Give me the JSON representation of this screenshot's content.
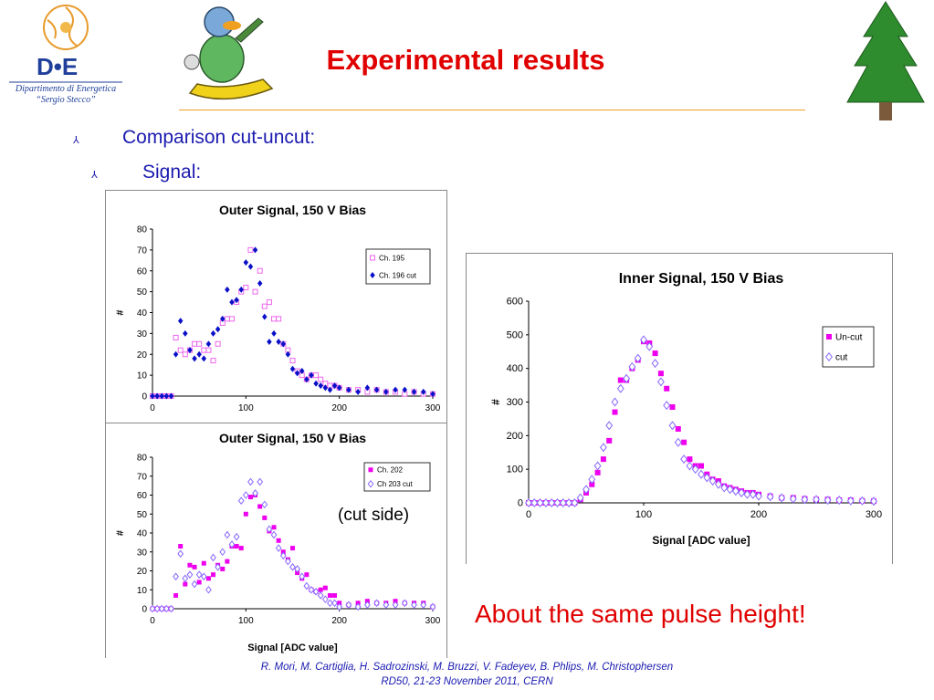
{
  "header": {
    "title": "Experimental results",
    "logo": {
      "lettering": "D•E",
      "caption_line1": "Dipartimento di Energetica",
      "caption_line2": "“Sergio Stecco”"
    }
  },
  "bullets": [
    {
      "text": "Comparison cut-uncut:",
      "icon": "arrowhead-bullet"
    },
    {
      "text": "Signal:",
      "icon": "arrowhead-bullet"
    }
  ],
  "colors": {
    "accent_red": "#e00000",
    "bullet_blue": "#1a1ab0",
    "open_series": "#ee66ee",
    "filled_blue": "#0a10c8",
    "filled_magenta": "#ee00ee",
    "open_diamond": "#8866ff"
  },
  "annotations": {
    "cut_side": "(cut side)",
    "conclusion": "About the same pulse height!"
  },
  "footer": {
    "line1": "R. Mori, M. Cartiglia, H. Sadrozinski, M. Bruzzi, V. Fadeyev, B. Phlips, M. Christophersen",
    "line2": "RD50, 21-23 November 2011, CERN"
  },
  "chart_data": [
    {
      "type": "scatter",
      "title": "Outer Signal, 150 V Bias",
      "xlabel": "",
      "ylabel": "#",
      "xlim": [
        0,
        300
      ],
      "ylim": [
        0,
        80
      ],
      "xticks": [
        0,
        100,
        200,
        300
      ],
      "yticks": [
        0,
        10,
        20,
        30,
        40,
        50,
        60,
        70,
        80
      ],
      "legend": "top-right",
      "series": [
        {
          "name": "Ch. 195",
          "marker": "open-square",
          "color": "#ee66ee",
          "x": [
            0,
            5,
            10,
            15,
            20,
            25,
            30,
            35,
            40,
            45,
            50,
            55,
            60,
            65,
            70,
            75,
            80,
            85,
            90,
            95,
            100,
            105,
            110,
            115,
            120,
            125,
            130,
            135,
            140,
            145,
            150,
            155,
            160,
            165,
            170,
            175,
            180,
            185,
            190,
            195,
            200,
            210,
            220,
            230,
            240,
            250,
            260,
            270,
            280,
            290,
            300
          ],
          "y": [
            0,
            0,
            0,
            0,
            0,
            28,
            22,
            20,
            22,
            25,
            25,
            22,
            22,
            17,
            25,
            35,
            37,
            37,
            45,
            50,
            52,
            70,
            50,
            60,
            43,
            45,
            37,
            37,
            25,
            22,
            17,
            12,
            10,
            8,
            10,
            10,
            8,
            6,
            5,
            5,
            4,
            3,
            3,
            2,
            3,
            2,
            2,
            1,
            2,
            1,
            1
          ]
        },
        {
          "name": "Ch. 196 cut",
          "marker": "filled-diamond",
          "color": "#0a10c8",
          "x": [
            0,
            5,
            10,
            15,
            20,
            25,
            30,
            35,
            40,
            45,
            50,
            55,
            60,
            65,
            70,
            75,
            80,
            85,
            90,
            95,
            100,
            105,
            110,
            115,
            120,
            125,
            130,
            135,
            140,
            145,
            150,
            155,
            160,
            165,
            170,
            175,
            180,
            185,
            190,
            195,
            200,
            210,
            220,
            230,
            240,
            250,
            260,
            270,
            280,
            290,
            300
          ],
          "y": [
            0,
            0,
            0,
            0,
            0,
            20,
            36,
            30,
            22,
            18,
            20,
            18,
            25,
            30,
            32,
            37,
            51,
            45,
            46,
            51,
            64,
            62,
            70,
            54,
            38,
            26,
            30,
            26,
            25,
            20,
            13,
            11,
            12,
            8,
            10,
            6,
            5,
            4,
            3,
            5,
            4,
            3,
            2,
            4,
            3,
            2,
            3,
            3,
            2,
            2,
            1
          ]
        }
      ]
    },
    {
      "type": "scatter",
      "title": "Outer Signal, 150 V Bias",
      "xlabel": "Signal [ADC value]",
      "ylabel": "#",
      "xlim": [
        0,
        300
      ],
      "ylim": [
        0,
        80
      ],
      "xticks": [
        0,
        100,
        200,
        300
      ],
      "yticks": [
        0,
        10,
        20,
        30,
        40,
        50,
        60,
        70,
        80
      ],
      "legend": "top-right",
      "series": [
        {
          "name": "Ch. 202",
          "marker": "filled-square",
          "color": "#ee00ee",
          "x": [
            0,
            5,
            10,
            15,
            20,
            25,
            30,
            35,
            40,
            45,
            50,
            55,
            60,
            65,
            70,
            75,
            80,
            85,
            90,
            95,
            100,
            105,
            110,
            115,
            120,
            125,
            130,
            135,
            140,
            145,
            150,
            155,
            160,
            165,
            170,
            175,
            180,
            185,
            190,
            195,
            200,
            210,
            220,
            230,
            240,
            250,
            260,
            270,
            280,
            290,
            300
          ],
          "y": [
            0,
            0,
            0,
            0,
            0,
            7,
            33,
            13,
            23,
            22,
            14,
            24,
            16,
            18,
            23,
            21,
            25,
            33,
            33,
            32,
            50,
            59,
            60,
            54,
            48,
            41,
            43,
            36,
            30,
            26,
            32,
            19,
            16,
            18,
            10,
            9,
            10,
            11,
            7,
            7,
            3,
            2,
            3,
            4,
            3,
            3,
            4,
            3,
            3,
            3,
            1
          ]
        },
        {
          "name": "Ch 203 cut",
          "marker": "open-diamond",
          "color": "#8866ff",
          "x": [
            0,
            5,
            10,
            15,
            20,
            25,
            30,
            35,
            40,
            45,
            50,
            55,
            60,
            65,
            70,
            75,
            80,
            85,
            90,
            95,
            100,
            105,
            110,
            115,
            120,
            125,
            130,
            135,
            140,
            145,
            150,
            155,
            160,
            165,
            170,
            175,
            180,
            185,
            190,
            195,
            200,
            210,
            220,
            230,
            240,
            250,
            260,
            270,
            280,
            290,
            300
          ],
          "y": [
            0,
            0,
            0,
            0,
            0,
            17,
            29,
            16,
            18,
            13,
            18,
            17,
            10,
            27,
            22,
            30,
            39,
            34,
            38,
            57,
            60,
            67,
            61,
            67,
            55,
            42,
            39,
            32,
            28,
            25,
            22,
            21,
            17,
            12,
            10,
            9,
            7,
            5,
            3,
            3,
            1,
            2,
            1,
            2,
            3,
            2,
            2,
            3,
            2,
            2,
            1
          ]
        }
      ]
    },
    {
      "type": "scatter",
      "title": "Inner Signal, 150 V Bias",
      "xlabel": "Signal [ADC value]",
      "ylabel": "#",
      "xlim": [
        0,
        300
      ],
      "ylim": [
        0,
        600
      ],
      "xticks": [
        0,
        100,
        200,
        300
      ],
      "yticks": [
        0,
        100,
        200,
        300,
        400,
        500,
        600
      ],
      "legend": "right",
      "series": [
        {
          "name": "Un-cut",
          "marker": "filled-square",
          "color": "#ee00ee",
          "x": [
            0,
            5,
            10,
            15,
            20,
            25,
            30,
            35,
            40,
            45,
            50,
            55,
            60,
            65,
            70,
            75,
            80,
            85,
            90,
            95,
            100,
            105,
            110,
            115,
            120,
            125,
            130,
            135,
            140,
            145,
            150,
            155,
            160,
            165,
            170,
            175,
            180,
            185,
            190,
            195,
            200,
            210,
            220,
            230,
            240,
            250,
            260,
            270,
            280,
            290,
            300
          ],
          "y": [
            0,
            0,
            0,
            0,
            0,
            0,
            0,
            0,
            0,
            10,
            30,
            55,
            90,
            130,
            185,
            270,
            365,
            365,
            400,
            425,
            480,
            475,
            445,
            385,
            340,
            285,
            220,
            180,
            130,
            110,
            110,
            85,
            70,
            65,
            50,
            45,
            40,
            35,
            30,
            30,
            25,
            20,
            15,
            15,
            12,
            10,
            10,
            8,
            8,
            6,
            5
          ]
        },
        {
          "name": "cut",
          "marker": "open-diamond",
          "color": "#8866ff",
          "x": [
            0,
            5,
            10,
            15,
            20,
            25,
            30,
            35,
            40,
            45,
            50,
            55,
            60,
            65,
            70,
            75,
            80,
            85,
            90,
            95,
            100,
            105,
            110,
            115,
            120,
            125,
            130,
            135,
            140,
            145,
            150,
            155,
            160,
            165,
            170,
            175,
            180,
            185,
            190,
            195,
            200,
            210,
            220,
            230,
            240,
            250,
            260,
            270,
            280,
            290,
            300
          ],
          "y": [
            0,
            0,
            0,
            0,
            0,
            0,
            0,
            0,
            0,
            15,
            40,
            70,
            110,
            165,
            230,
            300,
            340,
            370,
            405,
            430,
            485,
            465,
            415,
            360,
            290,
            230,
            180,
            130,
            110,
            100,
            85,
            75,
            65,
            55,
            45,
            40,
            35,
            30,
            25,
            25,
            20,
            18,
            15,
            12,
            10,
            10,
            8,
            8,
            6,
            6,
            5
          ]
        }
      ]
    }
  ]
}
